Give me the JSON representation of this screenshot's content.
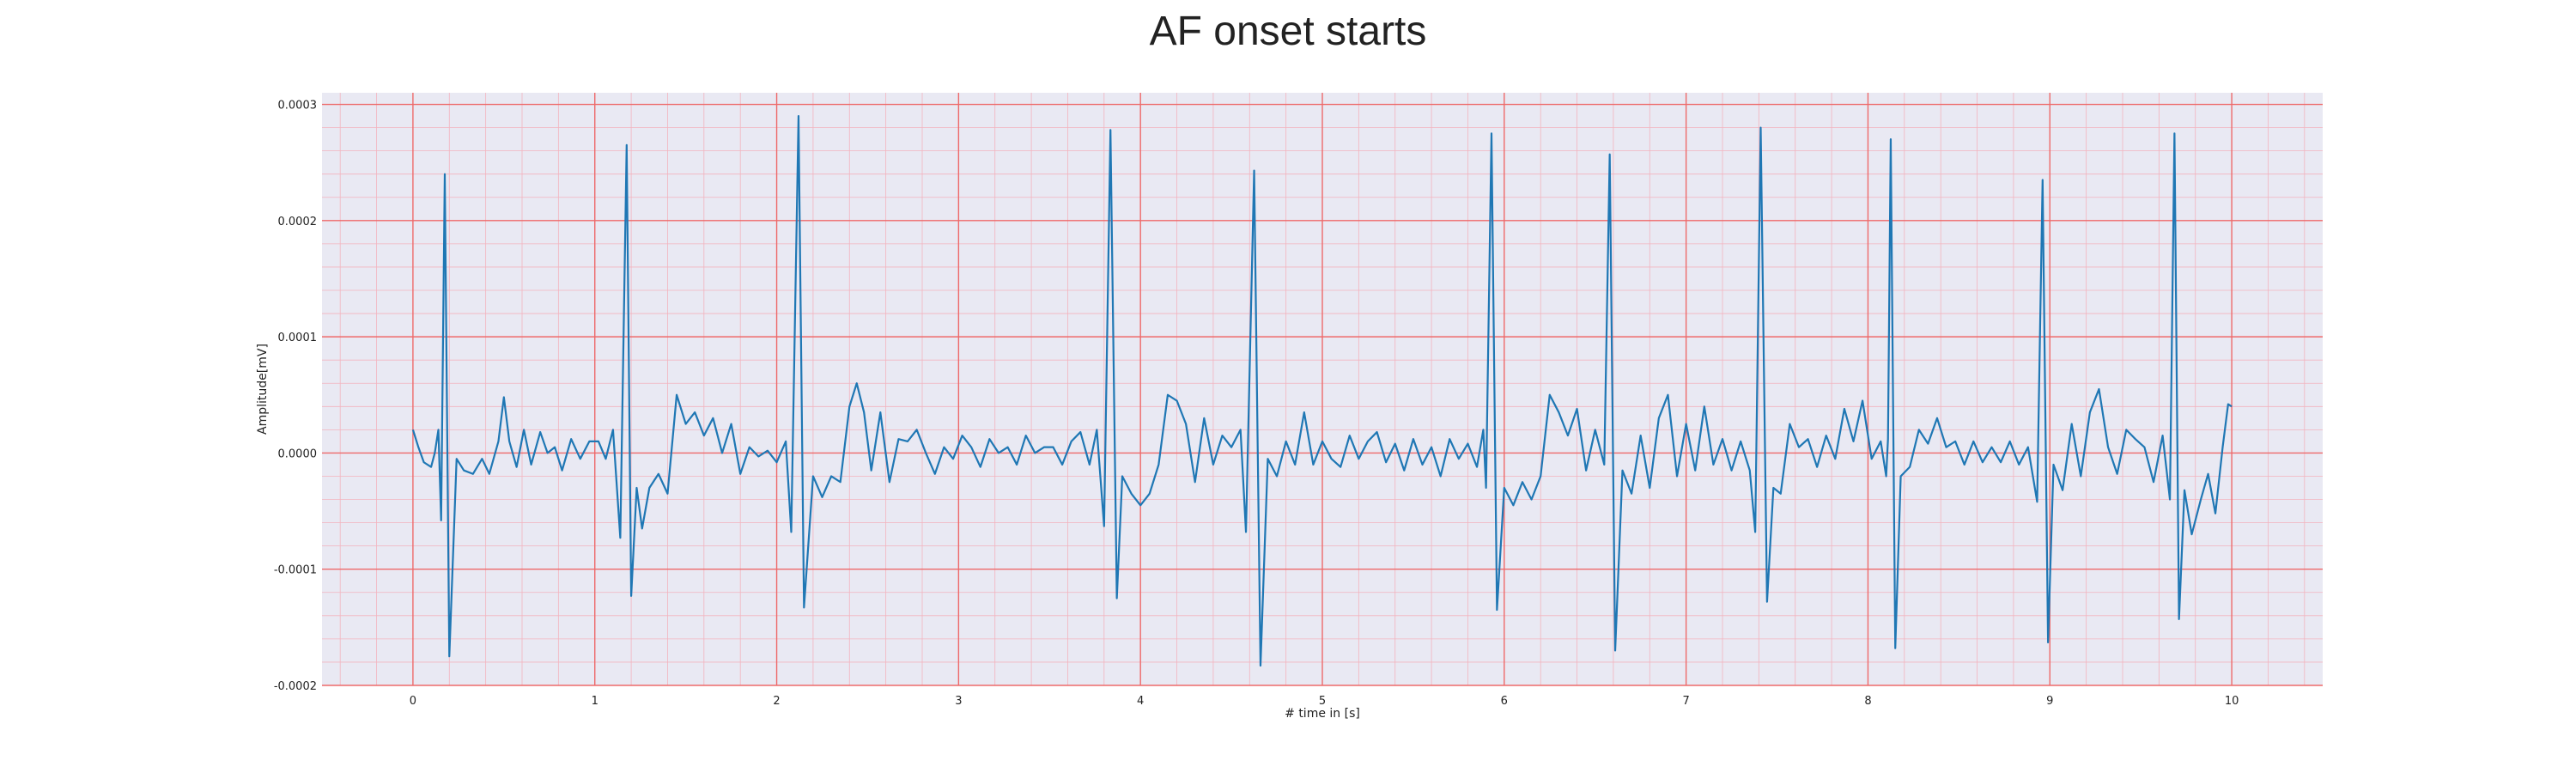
{
  "chart_data": {
    "type": "line",
    "title": "AF onset starts",
    "xlabel": "# time in [s]",
    "ylabel": "Amplitude[mV]",
    "xlim": [
      -0.5,
      10.5
    ],
    "ylim": [
      -0.0002,
      0.00031
    ],
    "x_ticks": [
      0,
      1,
      2,
      3,
      4,
      5,
      6,
      7,
      8,
      9,
      10
    ],
    "x_tick_labels": [
      "0",
      "1",
      "2",
      "3",
      "4",
      "5",
      "6",
      "7",
      "8",
      "9",
      "10"
    ],
    "y_ticks": [
      -0.0002,
      -0.0001,
      0.0,
      0.0001,
      0.0002,
      0.0003
    ],
    "y_tick_labels": [
      "-0.0002",
      "-0.0001",
      "0.0000",
      "0.0001",
      "0.0002",
      "0.0003"
    ],
    "grid": "major and minor, red",
    "series": [
      {
        "points": [
          [
            0.0,
            2e-05
          ],
          [
            0.03,
            5e-06
          ],
          [
            0.06,
            -8e-06
          ],
          [
            0.1,
            -1.2e-05
          ],
          [
            0.12,
            0.0
          ],
          [
            0.14,
            2e-05
          ],
          [
            0.155,
            -5.8e-05
          ],
          [
            0.175,
            0.00024
          ],
          [
            0.2,
            -0.000175
          ],
          [
            0.24,
            -5e-06
          ],
          [
            0.28,
            -1.5e-05
          ],
          [
            0.33,
            -1.8e-05
          ],
          [
            0.38,
            -5e-06
          ],
          [
            0.42,
            -1.8e-05
          ],
          [
            0.47,
            1e-05
          ],
          [
            0.5,
            4.8e-05
          ],
          [
            0.53,
            1e-05
          ],
          [
            0.57,
            -1.2e-05
          ],
          [
            0.61,
            2e-05
          ],
          [
            0.65,
            -1e-05
          ],
          [
            0.7,
            1.8e-05
          ],
          [
            0.74,
            0.0
          ],
          [
            0.78,
            5e-06
          ],
          [
            0.82,
            -1.5e-05
          ],
          [
            0.87,
            1.2e-05
          ],
          [
            0.92,
            -5e-06
          ],
          [
            0.97,
            1e-05
          ],
          [
            1.02,
            1e-05
          ],
          [
            1.06,
            -5e-06
          ],
          [
            1.1,
            2e-05
          ],
          [
            1.14,
            -7.3e-05
          ],
          [
            1.175,
            0.000265
          ],
          [
            1.2,
            -0.000123
          ],
          [
            1.23,
            -3e-05
          ],
          [
            1.26,
            -6.5e-05
          ],
          [
            1.3,
            -3e-05
          ],
          [
            1.35,
            -1.8e-05
          ],
          [
            1.4,
            -3.5e-05
          ],
          [
            1.45,
            5e-05
          ],
          [
            1.5,
            2.5e-05
          ],
          [
            1.55,
            3.5e-05
          ],
          [
            1.6,
            1.5e-05
          ],
          [
            1.65,
            3e-05
          ],
          [
            1.7,
            0.0
          ],
          [
            1.75,
            2.5e-05
          ],
          [
            1.8,
            -1.8e-05
          ],
          [
            1.85,
            5e-06
          ],
          [
            1.9,
            -3e-06
          ],
          [
            1.95,
            2e-06
          ],
          [
            2.0,
            -8e-06
          ],
          [
            2.05,
            1e-05
          ],
          [
            2.08,
            -6.8e-05
          ],
          [
            2.12,
            0.00029
          ],
          [
            2.15,
            -0.000133
          ],
          [
            2.2,
            -2e-05
          ],
          [
            2.25,
            -3.8e-05
          ],
          [
            2.3,
            -2e-05
          ],
          [
            2.35,
            -2.5e-05
          ],
          [
            2.4,
            4e-05
          ],
          [
            2.44,
            6e-05
          ],
          [
            2.48,
            3.5e-05
          ],
          [
            2.52,
            -1.5e-05
          ],
          [
            2.57,
            3.5e-05
          ],
          [
            2.62,
            -2.5e-05
          ],
          [
            2.67,
            1.2e-05
          ],
          [
            2.72,
            1e-05
          ],
          [
            2.77,
            2e-05
          ],
          [
            2.82,
            0.0
          ],
          [
            2.87,
            -1.8e-05
          ],
          [
            2.92,
            5e-06
          ],
          [
            2.97,
            -5e-06
          ],
          [
            3.02,
            1.5e-05
          ],
          [
            3.07,
            5e-06
          ],
          [
            3.12,
            -1.2e-05
          ],
          [
            3.17,
            1.2e-05
          ],
          [
            3.22,
            0.0
          ],
          [
            3.27,
            5e-06
          ],
          [
            3.32,
            -1e-05
          ],
          [
            3.37,
            1.5e-05
          ],
          [
            3.42,
            0.0
          ],
          [
            3.47,
            5e-06
          ],
          [
            3.52,
            5e-06
          ],
          [
            3.57,
            -1e-05
          ],
          [
            3.62,
            1e-05
          ],
          [
            3.67,
            1.8e-05
          ],
          [
            3.72,
            -1e-05
          ],
          [
            3.76,
            2e-05
          ],
          [
            3.8,
            -6.3e-05
          ],
          [
            3.835,
            0.000278
          ],
          [
            3.87,
            -0.000125
          ],
          [
            3.9,
            -2e-05
          ],
          [
            3.95,
            -3.5e-05
          ],
          [
            4.0,
            -4.5e-05
          ],
          [
            4.05,
            -3.5e-05
          ],
          [
            4.1,
            -1e-05
          ],
          [
            4.15,
            5e-05
          ],
          [
            4.2,
            4.5e-05
          ],
          [
            4.25,
            2.5e-05
          ],
          [
            4.3,
            -2.5e-05
          ],
          [
            4.35,
            3e-05
          ],
          [
            4.4,
            -1e-05
          ],
          [
            4.45,
            1.5e-05
          ],
          [
            4.5,
            5e-06
          ],
          [
            4.55,
            2e-05
          ],
          [
            4.58,
            -6.8e-05
          ],
          [
            4.625,
            0.000243
          ],
          [
            4.66,
            -0.000183
          ],
          [
            4.7,
            -5e-06
          ],
          [
            4.75,
            -2e-05
          ],
          [
            4.8,
            1e-05
          ],
          [
            4.85,
            -1e-05
          ],
          [
            4.9,
            3.5e-05
          ],
          [
            4.95,
            -1e-05
          ],
          [
            5.0,
            1e-05
          ],
          [
            5.05,
            -5e-06
          ],
          [
            5.1,
            -1.2e-05
          ],
          [
            5.15,
            1.5e-05
          ],
          [
            5.2,
            -5e-06
          ],
          [
            5.25,
            1e-05
          ],
          [
            5.3,
            1.8e-05
          ],
          [
            5.35,
            -8e-06
          ],
          [
            5.4,
            8e-06
          ],
          [
            5.45,
            -1.5e-05
          ],
          [
            5.5,
            1.2e-05
          ],
          [
            5.55,
            -1e-05
          ],
          [
            5.6,
            5e-06
          ],
          [
            5.65,
            -2e-05
          ],
          [
            5.7,
            1.2e-05
          ],
          [
            5.75,
            -5e-06
          ],
          [
            5.8,
            8e-06
          ],
          [
            5.85,
            -1.2e-05
          ],
          [
            5.885,
            2e-05
          ],
          [
            5.9,
            -3e-05
          ],
          [
            5.93,
            0.000275
          ],
          [
            5.96,
            -0.000135
          ],
          [
            6.0,
            -3e-05
          ],
          [
            6.05,
            -4.5e-05
          ],
          [
            6.1,
            -2.5e-05
          ],
          [
            6.15,
            -4e-05
          ],
          [
            6.2,
            -2e-05
          ],
          [
            6.25,
            5e-05
          ],
          [
            6.3,
            3.5e-05
          ],
          [
            6.35,
            1.5e-05
          ],
          [
            6.4,
            3.8e-05
          ],
          [
            6.45,
            -1.5e-05
          ],
          [
            6.5,
            2e-05
          ],
          [
            6.55,
            -1e-05
          ],
          [
            6.58,
            0.000257
          ],
          [
            6.61,
            -0.00017
          ],
          [
            6.65,
            -1.5e-05
          ],
          [
            6.7,
            -3.5e-05
          ],
          [
            6.75,
            1.5e-05
          ],
          [
            6.8,
            -3e-05
          ],
          [
            6.85,
            3e-05
          ],
          [
            6.9,
            5e-05
          ],
          [
            6.95,
            -2e-05
          ],
          [
            7.0,
            2.5e-05
          ],
          [
            7.05,
            -1.5e-05
          ],
          [
            7.1,
            4e-05
          ],
          [
            7.15,
            -1e-05
          ],
          [
            7.2,
            1.2e-05
          ],
          [
            7.25,
            -1.5e-05
          ],
          [
            7.3,
            1e-05
          ],
          [
            7.35,
            -1.5e-05
          ],
          [
            7.38,
            -6.8e-05
          ],
          [
            7.41,
            0.00028
          ],
          [
            7.445,
            -0.000128
          ],
          [
            7.48,
            -3e-05
          ],
          [
            7.52,
            -3.5e-05
          ],
          [
            7.57,
            2.5e-05
          ],
          [
            7.62,
            5e-06
          ],
          [
            7.67,
            1.2e-05
          ],
          [
            7.72,
            -1.2e-05
          ],
          [
            7.77,
            1.5e-05
          ],
          [
            7.82,
            -5e-06
          ],
          [
            7.87,
            3.8e-05
          ],
          [
            7.92,
            1e-05
          ],
          [
            7.97,
            4.5e-05
          ],
          [
            8.02,
            -5e-06
          ],
          [
            8.07,
            1e-05
          ],
          [
            8.1,
            -2e-05
          ],
          [
            8.11,
            1.2e-05
          ],
          [
            8.125,
            0.00027
          ],
          [
            8.15,
            -0.000168
          ],
          [
            8.18,
            -2e-05
          ],
          [
            8.23,
            -1.2e-05
          ],
          [
            8.28,
            2e-05
          ],
          [
            8.33,
            8e-06
          ],
          [
            8.38,
            3e-05
          ],
          [
            8.43,
            5e-06
          ],
          [
            8.48,
            1e-05
          ],
          [
            8.53,
            -1e-05
          ],
          [
            8.58,
            1e-05
          ],
          [
            8.63,
            -8e-06
          ],
          [
            8.68,
            5e-06
          ],
          [
            8.73,
            -8e-06
          ],
          [
            8.78,
            1e-05
          ],
          [
            8.83,
            -1e-05
          ],
          [
            8.88,
            5e-06
          ],
          [
            8.93,
            -4.2e-05
          ],
          [
            8.96,
            0.000235
          ],
          [
            8.99,
            -0.000163
          ],
          [
            9.02,
            -1e-05
          ],
          [
            9.07,
            -3.2e-05
          ],
          [
            9.12,
            2.5e-05
          ],
          [
            9.17,
            -2e-05
          ],
          [
            9.22,
            3.5e-05
          ],
          [
            9.27,
            5.5e-05
          ],
          [
            9.32,
            5e-06
          ],
          [
            9.37,
            -1.8e-05
          ],
          [
            9.42,
            2e-05
          ],
          [
            9.47,
            1.2e-05
          ],
          [
            9.52,
            5e-06
          ],
          [
            9.57,
            -2.5e-05
          ],
          [
            9.62,
            1.5e-05
          ],
          [
            9.66,
            -4e-05
          ],
          [
            9.685,
            0.000275
          ],
          [
            9.71,
            -0.000143
          ],
          [
            9.74,
            -3.2e-05
          ],
          [
            9.78,
            -7e-05
          ],
          [
            9.83,
            -4e-05
          ],
          [
            9.87,
            -1.8e-05
          ],
          [
            9.91,
            -5.2e-05
          ],
          [
            9.95,
            5e-06
          ],
          [
            9.98,
            4.2e-05
          ],
          [
            10.0,
            4e-05
          ]
        ]
      }
    ]
  }
}
